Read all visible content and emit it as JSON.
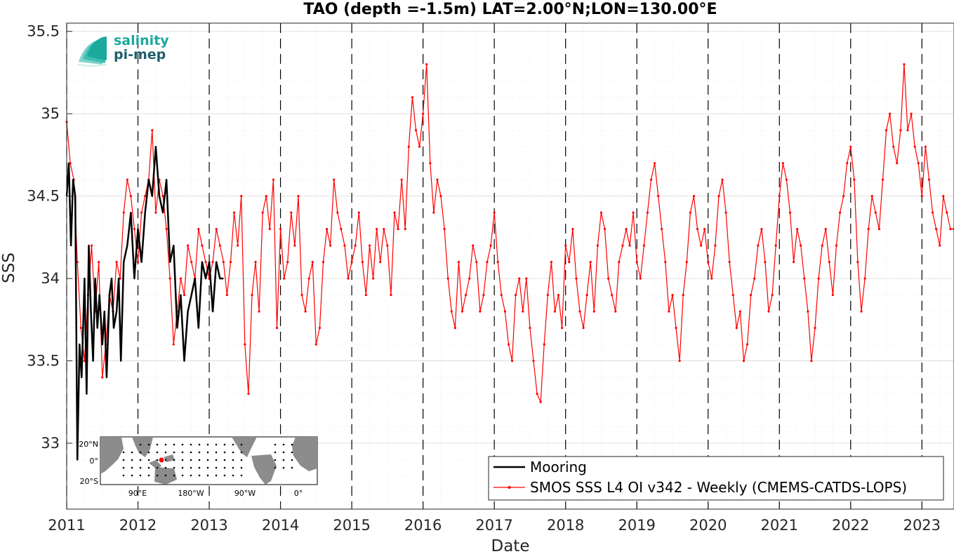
{
  "chart_data": {
    "type": "line",
    "title": "TAO (depth =-1.5m) LAT=2.00°N;LON=130.00°E",
    "xlabel": "Date",
    "ylabel": "SSS",
    "xlim": [
      2011.0,
      2023.45
    ],
    "ylim": [
      32.6,
      35.55
    ],
    "x_ticks": [
      2011,
      2012,
      2013,
      2014,
      2015,
      2016,
      2017,
      2018,
      2019,
      2020,
      2021,
      2022,
      2023
    ],
    "x_tick_labels": [
      "2011",
      "2012",
      "2013",
      "2014",
      "2015",
      "2016",
      "2017",
      "2018",
      "2019",
      "2020",
      "2021",
      "2022",
      "2023"
    ],
    "y_ticks": [
      33,
      33.5,
      34,
      34.5,
      35,
      35.5
    ],
    "y_tick_labels": [
      "33",
      "33.5",
      "34",
      "34.5",
      "35",
      "35.5"
    ],
    "vertical_dashed_lines": [
      2011,
      2012,
      2013,
      2014,
      2015,
      2016,
      2017,
      2018,
      2019,
      2020,
      2021,
      2022,
      2023
    ],
    "grid": true,
    "legend_position": "bottom-right",
    "series": [
      {
        "name": "Mooring",
        "color": "#000000",
        "marker": "none",
        "x": [
          2011.0,
          2011.03,
          2011.06,
          2011.09,
          2011.12,
          2011.15,
          2011.18,
          2011.21,
          2011.25,
          2011.28,
          2011.31,
          2011.34,
          2011.37,
          2011.4,
          2011.43,
          2011.46,
          2011.5,
          2011.53,
          2011.56,
          2011.6,
          2011.63,
          2011.66,
          2011.7,
          2011.73,
          2011.76,
          2011.8,
          2011.85,
          2011.9,
          2011.95,
          2012.0,
          2012.05,
          2012.1,
          2012.15,
          2012.2,
          2012.25,
          2012.3,
          2012.35,
          2012.4,
          2012.45,
          2012.5,
          2012.55,
          2012.6,
          2012.65,
          2012.7,
          2012.75,
          2012.8,
          2012.85,
          2012.9,
          2012.95,
          2013.0,
          2013.05,
          2013.1,
          2013.15,
          2013.2
        ],
        "y": [
          34.5,
          34.7,
          34.2,
          34.6,
          34.5,
          32.9,
          33.6,
          33.4,
          34.0,
          33.3,
          34.2,
          33.8,
          33.5,
          34.0,
          33.7,
          33.9,
          33.6,
          33.8,
          33.4,
          33.9,
          34.0,
          33.7,
          33.8,
          34.0,
          33.5,
          34.1,
          34.2,
          34.4,
          34.0,
          34.3,
          34.1,
          34.4,
          34.6,
          34.5,
          34.8,
          34.5,
          34.4,
          34.6,
          34.1,
          34.2,
          33.7,
          33.9,
          33.5,
          33.8,
          33.9,
          34.0,
          33.7,
          34.1,
          34.0,
          34.1,
          33.8,
          34.1,
          34.0,
          34.0
        ]
      },
      {
        "name": "SMOS SSS L4 OI v342 - Weekly (CMEMS-CATDS-LOPS)",
        "color": "#ff0000",
        "marker": "dot",
        "x": [
          2011.0,
          2011.05,
          2011.1,
          2011.15,
          2011.2,
          2011.25,
          2011.3,
          2011.35,
          2011.4,
          2011.45,
          2011.5,
          2011.55,
          2011.6,
          2011.65,
          2011.7,
          2011.75,
          2011.8,
          2011.85,
          2011.9,
          2011.95,
          2012.0,
          2012.05,
          2012.1,
          2012.15,
          2012.2,
          2012.25,
          2012.3,
          2012.35,
          2012.4,
          2012.45,
          2012.5,
          2012.55,
          2012.6,
          2012.65,
          2012.7,
          2012.75,
          2012.8,
          2012.85,
          2012.9,
          2012.95,
          2013.0,
          2013.05,
          2013.1,
          2013.15,
          2013.2,
          2013.25,
          2013.3,
          2013.35,
          2013.4,
          2013.45,
          2013.5,
          2013.55,
          2013.6,
          2013.65,
          2013.7,
          2013.75,
          2013.8,
          2013.85,
          2013.9,
          2013.95,
          2014.0,
          2014.05,
          2014.1,
          2014.15,
          2014.2,
          2014.25,
          2014.3,
          2014.35,
          2014.4,
          2014.45,
          2014.5,
          2014.55,
          2014.6,
          2014.65,
          2014.7,
          2014.75,
          2014.8,
          2014.85,
          2014.9,
          2014.95,
          2015.0,
          2015.05,
          2015.1,
          2015.15,
          2015.2,
          2015.25,
          2015.3,
          2015.35,
          2015.4,
          2015.45,
          2015.5,
          2015.55,
          2015.6,
          2015.65,
          2015.7,
          2015.75,
          2015.8,
          2015.85,
          2015.9,
          2015.95,
          2016.0,
          2016.05,
          2016.1,
          2016.15,
          2016.2,
          2016.25,
          2016.3,
          2016.35,
          2016.4,
          2016.45,
          2016.5,
          2016.55,
          2016.6,
          2016.65,
          2016.7,
          2016.75,
          2016.8,
          2016.85,
          2016.9,
          2016.95,
          2017.0,
          2017.05,
          2017.1,
          2017.15,
          2017.2,
          2017.25,
          2017.3,
          2017.35,
          2017.4,
          2017.45,
          2017.5,
          2017.55,
          2017.6,
          2017.65,
          2017.7,
          2017.75,
          2017.8,
          2017.85,
          2017.9,
          2017.95,
          2018.0,
          2018.05,
          2018.1,
          2018.15,
          2018.2,
          2018.25,
          2018.3,
          2018.35,
          2018.4,
          2018.45,
          2018.5,
          2018.55,
          2018.6,
          2018.65,
          2018.7,
          2018.75,
          2018.8,
          2018.85,
          2018.9,
          2018.95,
          2019.0,
          2019.05,
          2019.1,
          2019.15,
          2019.2,
          2019.25,
          2019.3,
          2019.35,
          2019.4,
          2019.45,
          2019.5,
          2019.55,
          2019.6,
          2019.65,
          2019.7,
          2019.75,
          2019.8,
          2019.85,
          2019.9,
          2019.95,
          2020.0,
          2020.05,
          2020.1,
          2020.15,
          2020.2,
          2020.25,
          2020.3,
          2020.35,
          2020.4,
          2020.45,
          2020.5,
          2020.55,
          2020.6,
          2020.65,
          2020.7,
          2020.75,
          2020.8,
          2020.85,
          2020.9,
          2020.95,
          2021.0,
          2021.05,
          2021.1,
          2021.15,
          2021.2,
          2021.25,
          2021.3,
          2021.35,
          2021.4,
          2021.45,
          2021.5,
          2021.55,
          2021.6,
          2021.65,
          2021.7,
          2021.75,
          2021.8,
          2021.85,
          2021.9,
          2021.95,
          2022.0,
          2022.05,
          2022.1,
          2022.15,
          2022.2,
          2022.25,
          2022.3,
          2022.35,
          2022.4,
          2022.45,
          2022.5,
          2022.55,
          2022.6,
          2022.65,
          2022.7,
          2022.75,
          2022.8,
          2022.85,
          2022.9,
          2022.95,
          2023.0,
          2023.05,
          2023.1,
          2023.15,
          2023.2,
          2023.25,
          2023.3,
          2023.35,
          2023.4,
          2023.45
        ],
        "y": [
          34.95,
          34.7,
          34.6,
          34.1,
          33.7,
          33.5,
          33.9,
          34.2,
          33.8,
          34.1,
          33.4,
          33.6,
          33.9,
          33.8,
          34.1,
          34.0,
          34.4,
          34.6,
          34.5,
          34.3,
          34.1,
          34.4,
          34.5,
          34.6,
          34.9,
          34.4,
          34.6,
          34.5,
          34.3,
          34.0,
          33.6,
          33.8,
          34.0,
          33.9,
          34.2,
          34.1,
          34.0,
          34.3,
          34.2,
          34.1,
          34.0,
          34.1,
          34.3,
          34.2,
          34.1,
          33.9,
          34.1,
          34.4,
          34.2,
          34.5,
          33.6,
          33.3,
          33.9,
          34.1,
          33.8,
          34.4,
          34.5,
          34.3,
          34.6,
          33.7,
          34.3,
          34.0,
          34.1,
          34.4,
          34.2,
          34.5,
          33.9,
          33.8,
          34.0,
          34.1,
          33.6,
          33.7,
          34.1,
          34.3,
          34.2,
          34.6,
          34.4,
          34.3,
          34.2,
          34.0,
          34.1,
          34.2,
          34.4,
          34.1,
          33.9,
          34.2,
          34.0,
          34.3,
          34.1,
          34.3,
          34.2,
          33.9,
          34.4,
          34.3,
          34.6,
          34.3,
          34.8,
          35.1,
          34.9,
          34.8,
          35.0,
          35.3,
          34.7,
          34.4,
          34.6,
          34.5,
          34.3,
          34.0,
          33.8,
          33.7,
          34.1,
          33.8,
          33.9,
          34.0,
          34.2,
          34.1,
          33.8,
          33.9,
          34.1,
          34.2,
          34.4,
          34.1,
          33.9,
          33.8,
          33.6,
          33.5,
          33.9,
          34.0,
          33.8,
          34.0,
          33.7,
          33.5,
          33.3,
          33.25,
          33.6,
          33.9,
          34.1,
          33.8,
          33.9,
          33.7,
          34.2,
          34.1,
          34.3,
          34.0,
          33.8,
          33.7,
          33.9,
          34.1,
          33.8,
          34.2,
          34.4,
          34.3,
          34.0,
          33.9,
          33.8,
          34.1,
          34.2,
          34.3,
          34.2,
          34.4,
          34.1,
          34.0,
          34.2,
          34.4,
          34.6,
          34.7,
          34.5,
          34.3,
          34.1,
          33.8,
          33.9,
          33.7,
          33.5,
          33.9,
          34.1,
          34.4,
          34.5,
          34.3,
          34.2,
          34.3,
          34.1,
          34.0,
          34.2,
          34.5,
          34.6,
          34.4,
          34.1,
          33.9,
          33.7,
          33.8,
          33.5,
          33.6,
          33.9,
          34.0,
          34.2,
          34.3,
          34.1,
          33.8,
          33.9,
          34.2,
          34.5,
          34.7,
          34.6,
          34.4,
          34.1,
          34.3,
          34.2,
          34.0,
          33.8,
          33.5,
          33.7,
          34.0,
          34.2,
          34.3,
          34.1,
          33.9,
          34.2,
          34.4,
          34.5,
          34.7,
          34.8,
          34.6,
          34.1,
          33.8,
          34.0,
          34.3,
          34.5,
          34.4,
          34.3,
          34.6,
          34.9,
          35.0,
          34.8,
          34.7,
          34.9,
          35.3,
          34.9,
          35.0,
          34.8,
          34.7,
          34.5,
          34.8,
          34.6,
          34.4,
          34.3,
          34.2,
          34.5,
          34.4,
          34.3,
          34.3
        ]
      }
    ]
  },
  "logo": {
    "line1": "salinity",
    "line2": "pi-mep"
  },
  "inset_map": {
    "lat_labels": [
      "20°N",
      "0°",
      "20°S"
    ],
    "lon_labels": [
      "90°E",
      "180°W",
      "90°W",
      "0°"
    ],
    "land_color": "#8c8c8c",
    "mooring_marker_color": "#ff0000"
  },
  "legend": {
    "entries": [
      "Mooring",
      "SMOS SSS L4 OI v342 - Weekly (CMEMS-CATDS-LOPS)"
    ]
  }
}
